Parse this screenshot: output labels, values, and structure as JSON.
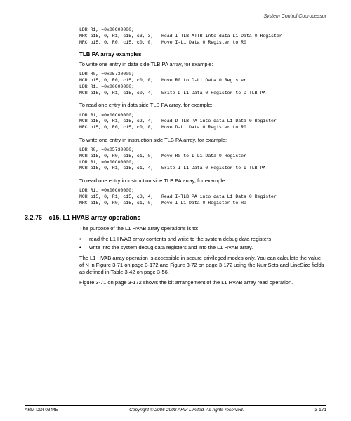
{
  "header": {
    "title": "System Control Coprocessor"
  },
  "codeblock1": "LDR R1, =0x00C00000;\nMRC p15, 0, R1, c15, c3, 3;   Read I-TLB ATTR into data L1 Data 0 Register\nMRC p15, 0, R0, c15, c0, 0;   Move I-L1 Data 0 Register to R0",
  "sub1": "TLB PA array examples",
  "text1": "To write one entry in data side TLB PA array, for example:",
  "codeblock2": "LDR R0, =0x05730000;\nMCR p15, 0, R0, c15, c0, 0;   Move R0 to D-L1 Data 0 Register\nLDR R1, =0x00C00000;\nMCR p15, 0, R1, c15, c0, 4;   Write D-L1 Data 0 Register to D-TLB PA",
  "text2": "To read one entry in data side TLB PA array, for example:",
  "codeblock3": "LDR R1, =0x00C00000;\nMCR p15, 0, R1, c15, c2, 4;   Read D-TLB PA into data L1 Data 0 Register\nMRC p15, 0, R0, c15, c0, 0;   Move D-L1 Data 0 Register to R0",
  "text3": "To write one entry in instruction side TLB PA array, for example:",
  "codeblock4": "LDR R0, =0x05730000;\nMCR p15, 0, R0, c15, c1, 0;   Move R0 to I-L1 Data 0 Register\nLDR R1, =0x00C00000;\nMCR p15, 0, R1, c15, c1, 4;   Write I-L1 Data 0 Register to I-TLB PA",
  "text4": "To read one entry in instruction side TLB PA array, for example:",
  "codeblock5": "LDR R1, =0x00C00000;\nMCR p15, 0, R1, c15, c3, 4;   Read I-TLB PA into data L1 Data 0 Register\nMRC p15, 0, R0, c15, c1, 0;   Move I-L1 Data 0 Register to R0",
  "section": {
    "num": "3.2.76",
    "title": "c15, L1 HVAB array operations"
  },
  "text5": "The purpose of the L1 HVAB array operations is to:",
  "bullets": [
    "read the L1 HVAB array contents and write to the system debug data registers",
    "write into the system debug data registers and into the L1 HVAB array."
  ],
  "text6": "The L1 HVAB array operation is accessible in secure privileged modes only. You can calculate the value of N in Figure 3-71 on page 3-172 and Figure 3-72 on page 3-172 using the NumSets and LineSize fields as defined in Table 3-42 on page 3-56.",
  "text7": "Figure 3-71 on page 3-172 shows the bit arrangement of the L1 HVAB array read operation.",
  "footer": {
    "left": "ARM DDI 0344E",
    "center": "Copyright © 2006-2008 ARM Limited. All rights reserved.",
    "right": "3-171"
  }
}
